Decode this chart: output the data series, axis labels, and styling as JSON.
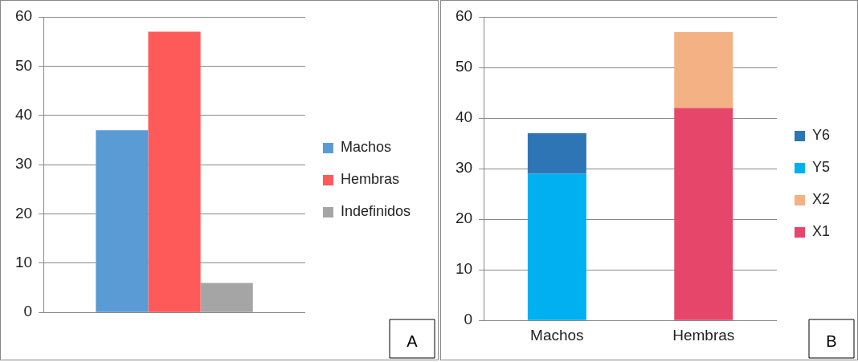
{
  "chart_data": [
    {
      "type": "bar",
      "categories": [
        null
      ],
      "series": [
        {
          "name": "Machos",
          "color": "#5b9bd5",
          "values": [
            37
          ]
        },
        {
          "name": "Hembras",
          "color": "#ff5a5a",
          "values": [
            57
          ]
        },
        {
          "name": "Indefinidos",
          "color": "#a5a5a5",
          "values": [
            6
          ]
        }
      ],
      "ylim": [
        0,
        60
      ],
      "yticks": [
        0,
        10,
        20,
        30,
        40,
        50,
        60
      ],
      "grid": "y",
      "legend": "right",
      "annotations": [
        "A"
      ]
    },
    {
      "type": "bar",
      "stacked": true,
      "categories": [
        "Machos",
        "Hembras"
      ],
      "series": [
        {
          "name": "X1",
          "color": "#e6466a",
          "values": [
            null,
            42
          ]
        },
        {
          "name": "X2",
          "color": "#f4b183",
          "values": [
            null,
            15
          ]
        },
        {
          "name": "Y5",
          "color": "#00b0f0",
          "values": [
            29,
            null
          ]
        },
        {
          "name": "Y6",
          "color": "#2e75b6",
          "values": [
            8,
            null
          ]
        }
      ],
      "ylim": [
        0,
        60
      ],
      "yticks": [
        0,
        10,
        20,
        30,
        40,
        50,
        60
      ],
      "grid": "y",
      "legend": "right",
      "annotations": [
        "B"
      ]
    }
  ]
}
